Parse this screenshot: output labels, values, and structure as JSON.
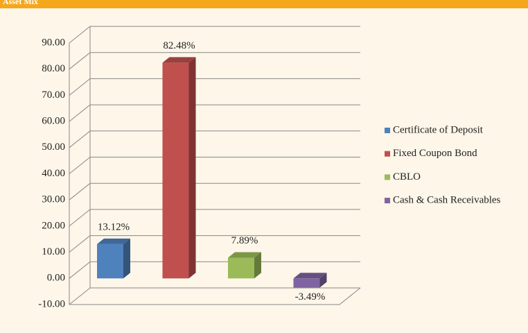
{
  "chart_data": {
    "type": "bar3d",
    "title": "Asset Mix",
    "categories": [
      "Certificate of Deposit",
      "Fixed Coupon Bond",
      "CBLO",
      "Cash & Cash Receivables"
    ],
    "values": [
      13.12,
      82.48,
      7.89,
      -3.49
    ],
    "value_labels": [
      "13.12%",
      "82.48%",
      "7.89%",
      "-3.49%"
    ],
    "colors": [
      "#4f81bd",
      "#c0504d",
      "#9bbb59",
      "#8064a2"
    ],
    "ylim": [
      -10,
      90
    ],
    "yticks": [
      {
        "value": -10,
        "label": "-10.00"
      },
      {
        "value": 0,
        "label": "0.00"
      },
      {
        "value": 10,
        "label": "10.00"
      },
      {
        "value": 20,
        "label": "20.00"
      },
      {
        "value": 30,
        "label": "30.00"
      },
      {
        "value": 40,
        "label": "40.00"
      },
      {
        "value": 50,
        "label": "50.00"
      },
      {
        "value": 60,
        "label": "60.00"
      },
      {
        "value": 70,
        "label": "70.00"
      },
      {
        "value": 80,
        "label": "80.00"
      },
      {
        "value": 90,
        "label": "90.00"
      }
    ],
    "grid": true,
    "legend": "right"
  }
}
